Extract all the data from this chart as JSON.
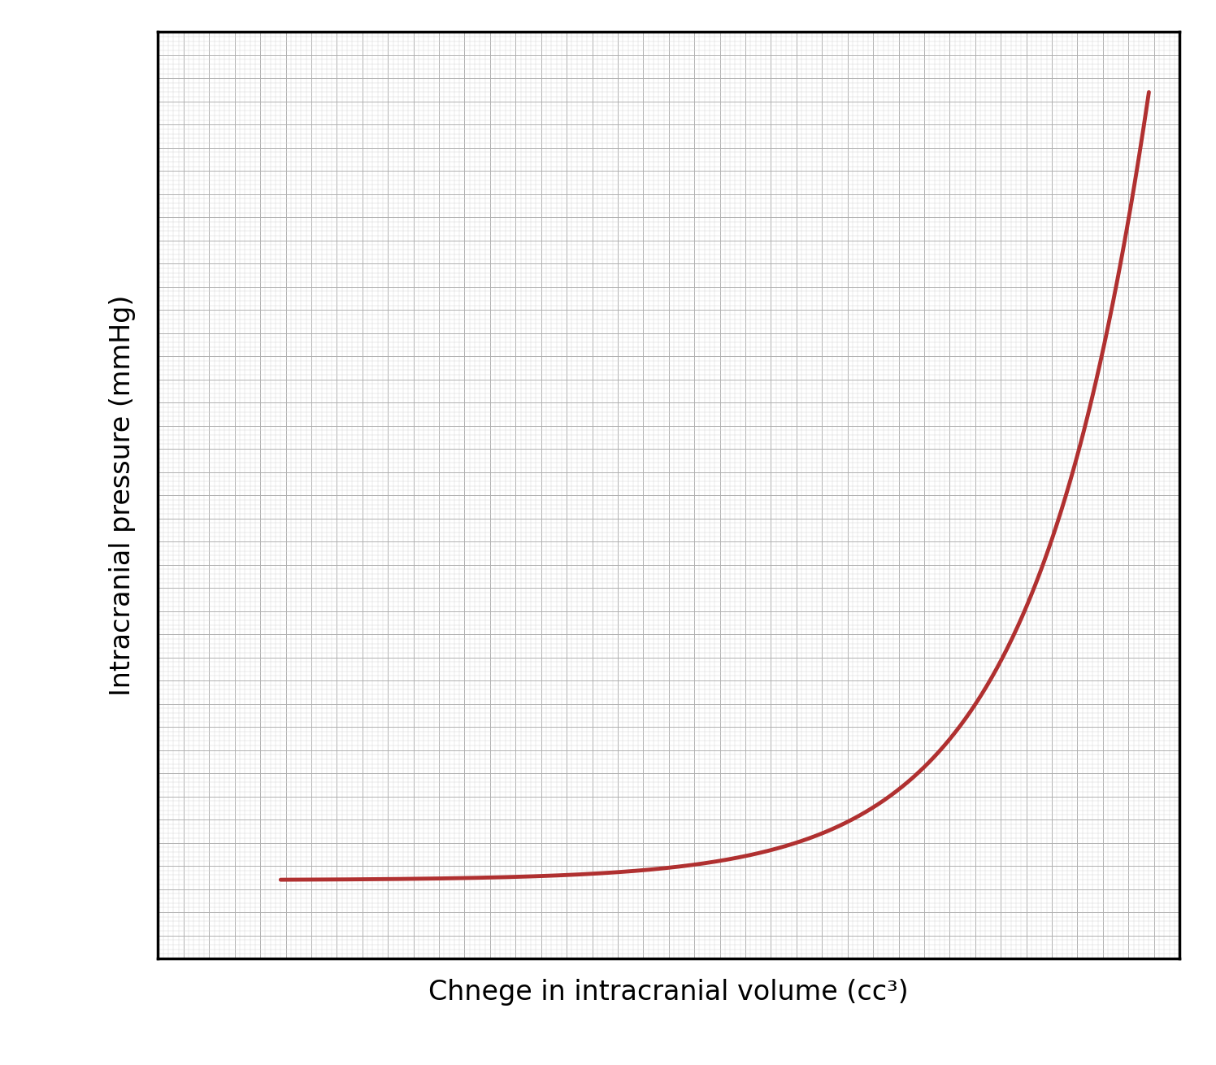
{
  "xlabel": "Chnege in intracranial volume (cc³)",
  "ylabel": "Intracranial pressure (mmHg)",
  "line_color": "#b03030",
  "line_width": 3.5,
  "background_color": "#ffffff",
  "grid_minor_color": "#d8d8d8",
  "grid_major_color": "#b0b0b0",
  "xlim": [
    0,
    1
  ],
  "ylim": [
    0,
    1
  ],
  "xlabel_fontsize": 24,
  "ylabel_fontsize": 24,
  "spine_linewidth": 2.5,
  "curve_x_start": 0.12,
  "curve_x_end": 0.97,
  "exp_scale": 7.5,
  "curve_y_offset": 0.085,
  "curve_y_max": 0.935,
  "major_grid_count": 41,
  "minor_grid_count": 201
}
